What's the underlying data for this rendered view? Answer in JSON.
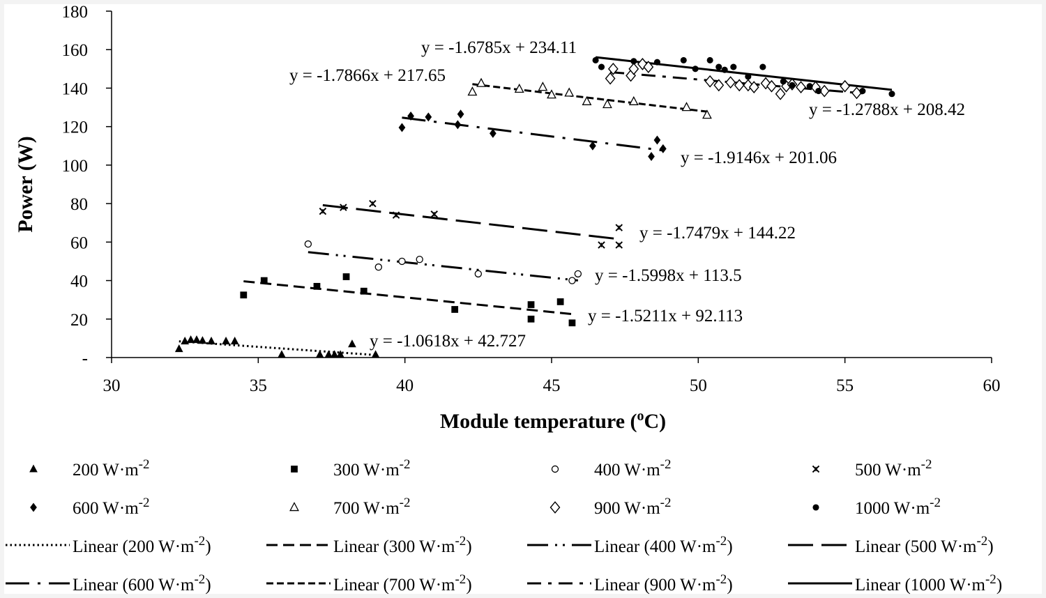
{
  "chart_data": {
    "type": "scatter",
    "xlabel": "Module temperature (oC)",
    "ylabel": "Power (W)",
    "xlim": [
      30,
      60
    ],
    "ylim": [
      0,
      180
    ],
    "x_ticks": [
      30,
      35,
      40,
      45,
      50,
      55,
      60
    ],
    "y_ticks": [
      0,
      20,
      40,
      60,
      80,
      100,
      120,
      140,
      160,
      180
    ],
    "y_tick_labels": [
      "-",
      "20",
      "40",
      "60",
      "80",
      "100",
      "120",
      "140",
      "160",
      "180"
    ],
    "grid": false,
    "legend_position": "bottom",
    "series": [
      {
        "name": "200 W·m-2",
        "marker": "triangle",
        "color": "#000000",
        "points": [
          [
            32.3,
            4.5
          ],
          [
            32.5,
            8.5
          ],
          [
            32.7,
            9.2
          ],
          [
            32.9,
            9.2
          ],
          [
            33.1,
            8.8
          ],
          [
            33.4,
            8.5
          ],
          [
            33.9,
            8.5
          ],
          [
            34.2,
            8.5
          ],
          [
            35.8,
            1.5
          ],
          [
            37.1,
            1.5
          ],
          [
            37.4,
            1.5
          ],
          [
            37.6,
            1.5
          ],
          [
            37.8,
            1.5
          ],
          [
            38.2,
            7.0
          ],
          [
            39.0,
            1.5
          ]
        ],
        "trend": {
          "slope": -1.0618,
          "intercept": 42.727,
          "x_range": [
            32.3,
            39.0
          ],
          "equation": "y = -1.0618x + 42.727",
          "name": "Linear (200 W·m-2)",
          "dash": "dotted"
        }
      },
      {
        "name": "300 W·m-2",
        "marker": "square",
        "color": "#000000",
        "points": [
          [
            34.5,
            32.5
          ],
          [
            35.2,
            40.0
          ],
          [
            37.0,
            37.0
          ],
          [
            38.0,
            42.0
          ],
          [
            38.6,
            34.5
          ],
          [
            41.7,
            25.0
          ],
          [
            44.3,
            27.5
          ],
          [
            44.3,
            20.0
          ],
          [
            45.3,
            29.0
          ],
          [
            45.7,
            18.0
          ]
        ],
        "trend": {
          "slope": -1.5211,
          "intercept": 92.113,
          "x_range": [
            34.5,
            45.7
          ],
          "equation": "y = -1.5211x + 92.113",
          "name": "Linear (300 W·m-2)",
          "dash": "dashed"
        }
      },
      {
        "name": "400 W·m-2",
        "marker": "circle-open",
        "color": "#000000",
        "points": [
          [
            36.7,
            59.0
          ],
          [
            39.1,
            47.0
          ],
          [
            39.9,
            50.0
          ],
          [
            40.5,
            51.0
          ],
          [
            42.5,
            43.5
          ],
          [
            45.7,
            40.0
          ],
          [
            45.9,
            43.5
          ]
        ],
        "trend": {
          "slope": -1.5998,
          "intercept": 113.5,
          "x_range": [
            36.7,
            45.9
          ],
          "equation": "y = -1.5998x + 113.5",
          "name": "Linear (400 W·m-2)",
          "dash": "long-dash-dot-dot"
        }
      },
      {
        "name": "500 W·m-2",
        "marker": "x",
        "color": "#000000",
        "points": [
          [
            37.2,
            76.0
          ],
          [
            37.9,
            78.0
          ],
          [
            38.9,
            80.0
          ],
          [
            39.7,
            74.0
          ],
          [
            41.0,
            74.5
          ],
          [
            46.7,
            58.5
          ],
          [
            47.3,
            58.5
          ],
          [
            47.3,
            67.5
          ]
        ],
        "trend": {
          "slope": -1.7479,
          "intercept": 144.22,
          "x_range": [
            37.2,
            47.3
          ],
          "equation": "y = -1.7479x + 144.22",
          "name": "Linear (500 W·m-2)",
          "dash": "long-dash"
        }
      },
      {
        "name": "600 W·m-2",
        "marker": "diamond",
        "color": "#000000",
        "points": [
          [
            39.9,
            119.5
          ],
          [
            40.2,
            125.5
          ],
          [
            40.8,
            125.0
          ],
          [
            41.8,
            121.0
          ],
          [
            41.9,
            126.5
          ],
          [
            43.0,
            116.5
          ],
          [
            46.4,
            110.0
          ],
          [
            48.4,
            104.5
          ],
          [
            48.6,
            113.0
          ],
          [
            48.8,
            108.5
          ]
        ],
        "trend": {
          "slope": -1.9146,
          "intercept": 201.06,
          "x_range": [
            39.9,
            48.8
          ],
          "equation": "y = -1.9146x + 201.06",
          "name": "Linear (600 W·m-2)",
          "dash": "long-dash-dot"
        }
      },
      {
        "name": "700 W·m-2",
        "marker": "triangle-open",
        "color": "#000000",
        "points": [
          [
            42.3,
            138.0
          ],
          [
            42.6,
            142.5
          ],
          [
            43.9,
            139.5
          ],
          [
            44.7,
            140.5
          ],
          [
            45.0,
            136.5
          ],
          [
            45.6,
            137.5
          ],
          [
            46.2,
            133.0
          ],
          [
            46.9,
            131.5
          ],
          [
            47.8,
            133.0
          ],
          [
            49.6,
            130.0
          ],
          [
            50.3,
            126.0
          ]
        ],
        "trend": {
          "slope": -1.7866,
          "intercept": 217.65,
          "x_range": [
            42.3,
            50.3
          ],
          "equation": "y = -1.7866x + 217.65",
          "name": "Linear (700 W·m-2)",
          "dash": "short-dash"
        }
      },
      {
        "name": "900 W·m-2",
        "marker": "diamond-open",
        "color": "#000000",
        "points": [
          [
            47.0,
            145.0
          ],
          [
            47.1,
            150.0
          ],
          [
            47.7,
            146.5
          ],
          [
            47.8,
            150.0
          ],
          [
            48.1,
            152.5
          ],
          [
            48.3,
            151.0
          ],
          [
            50.4,
            143.5
          ],
          [
            50.7,
            141.5
          ],
          [
            51.1,
            143.0
          ],
          [
            51.4,
            141.5
          ],
          [
            51.7,
            141.5
          ],
          [
            51.9,
            140.5
          ],
          [
            52.3,
            142.5
          ],
          [
            52.5,
            141.0
          ],
          [
            52.8,
            137.0
          ],
          [
            53.0,
            141.0
          ],
          [
            53.2,
            142.0
          ],
          [
            53.5,
            140.5
          ],
          [
            54.0,
            140.5
          ],
          [
            54.3,
            138.5
          ],
          [
            55.0,
            141.0
          ],
          [
            55.4,
            137.5
          ]
        ],
        "trend": {
          "slope": -1.2788,
          "intercept": 208.42,
          "x_range": [
            47.0,
            55.6
          ],
          "equation": "y = -1.2788x + 208.42",
          "name": "Linear (900 W·m-2)",
          "dash": "dash-dot"
        }
      },
      {
        "name": "1000 W·m-2",
        "marker": "circle",
        "color": "#000000",
        "points": [
          [
            46.5,
            154.5
          ],
          [
            46.7,
            151.0
          ],
          [
            47.8,
            154.0
          ],
          [
            48.6,
            153.5
          ],
          [
            49.5,
            154.5
          ],
          [
            49.9,
            150.0
          ],
          [
            50.4,
            154.5
          ],
          [
            50.7,
            151.0
          ],
          [
            50.9,
            149.5
          ],
          [
            51.2,
            151.0
          ],
          [
            51.7,
            146.0
          ],
          [
            52.2,
            151.0
          ],
          [
            52.9,
            143.5
          ],
          [
            53.2,
            141.5
          ],
          [
            53.8,
            141.0
          ],
          [
            54.1,
            138.5
          ],
          [
            55.6,
            138.5
          ],
          [
            56.6,
            137.0
          ]
        ],
        "trend": {
          "slope": -1.6785,
          "intercept": 234.11,
          "x_range": [
            46.5,
            56.6
          ],
          "equation": "y = -1.6785x + 234.11",
          "name": "Linear (1000 W·m-2)",
          "dash": "solid"
        }
      }
    ]
  }
}
